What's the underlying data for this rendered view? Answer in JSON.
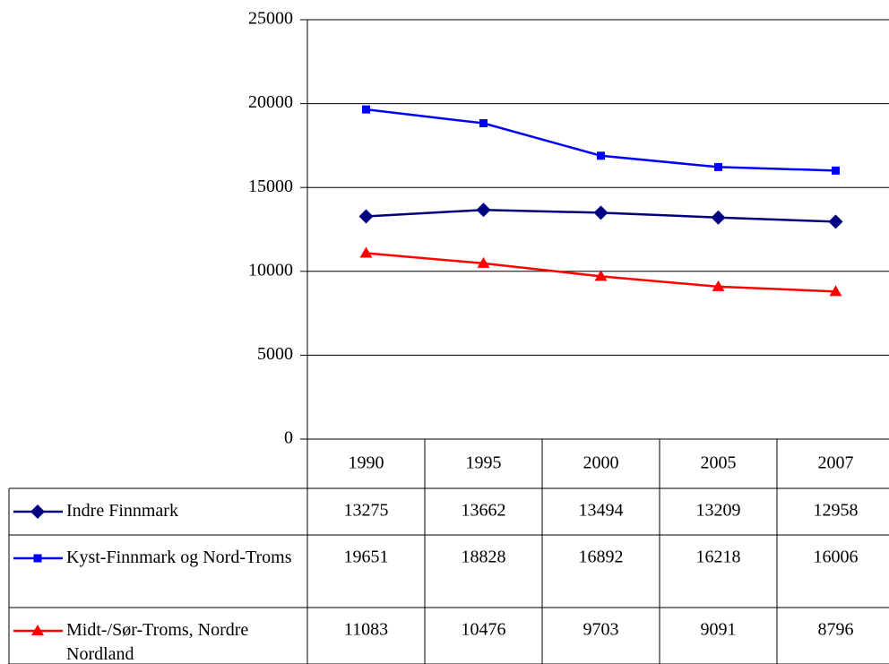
{
  "chart_data": {
    "type": "line",
    "categories": [
      "1990",
      "1995",
      "2000",
      "2005",
      "2007"
    ],
    "series": [
      {
        "name": "Indre Finnmark",
        "color": "#000080",
        "marker": "diamond",
        "values": [
          13275,
          13662,
          13494,
          13209,
          12958
        ]
      },
      {
        "name": "Kyst-Finnmark og Nord-Troms",
        "color": "#0000ff",
        "marker": "square",
        "values": [
          19651,
          18828,
          16892,
          16218,
          16006
        ]
      },
      {
        "name": "Midt-/Sør-Troms, Nordre Nordland",
        "color": "#ff0000",
        "marker": "triangle",
        "values": [
          11083,
          10476,
          9703,
          9091,
          8796
        ]
      }
    ],
    "ylim": [
      0,
      25000
    ],
    "yticks": [
      0,
      5000,
      10000,
      15000,
      20000,
      25000
    ],
    "grid": true,
    "data_table": true
  }
}
